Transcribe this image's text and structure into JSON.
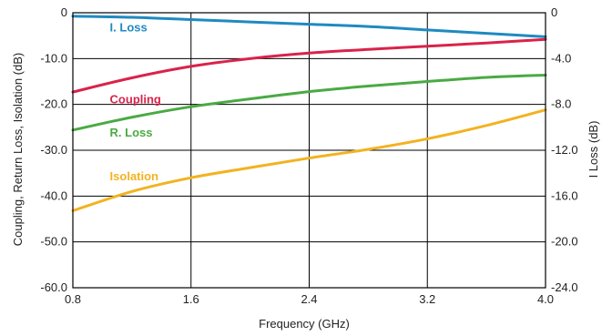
{
  "chart_data": {
    "type": "line",
    "xlabel": "Frequency (GHz)",
    "ylabel_left": "Coupling, Return Loss, Isolation (dB)",
    "ylabel_right": "I Loss (dB)",
    "xlim": [
      0.8,
      4.0
    ],
    "ylim_left": [
      -60,
      0
    ],
    "ylim_right": [
      -24,
      0
    ],
    "x_ticks": [
      0.8,
      1.6,
      2.4,
      3.2,
      4.0
    ],
    "x_tick_labels": [
      "0.8",
      "1.6",
      "2.4",
      "3.2",
      "4.0"
    ],
    "y_left_ticks": [
      0,
      -10,
      -20,
      -30,
      -40,
      -50,
      -60
    ],
    "y_left_tick_labels": [
      "0",
      "-10.0",
      "-20.0",
      "-30.0",
      "-40.0",
      "-50.0",
      "-60.0"
    ],
    "y_right_ticks": [
      0,
      -4,
      -8,
      -12,
      -16,
      -20,
      -24
    ],
    "y_right_tick_labels": [
      "0",
      "-4.0",
      "-8.0",
      "-12.0",
      "-16.0",
      "-20.0",
      "-24.0"
    ],
    "grid": true,
    "legend": "inline labels",
    "x": [
      0.8,
      1.2,
      1.6,
      2.0,
      2.4,
      2.8,
      3.2,
      3.6,
      4.0
    ],
    "series": [
      {
        "name": "I. Loss",
        "axis": "right",
        "color": "#1f8ac0",
        "values": [
          -0.3,
          -0.4,
          -0.6,
          -0.8,
          -1.0,
          -1.2,
          -1.5,
          -1.8,
          -2.1
        ]
      },
      {
        "name": "Coupling",
        "axis": "left",
        "color": "#d9234b",
        "values": [
          -17.3,
          -14.2,
          -11.7,
          -10.0,
          -8.8,
          -8.0,
          -7.3,
          -6.6,
          -5.8
        ]
      },
      {
        "name": "R. Loss",
        "axis": "left",
        "color": "#4aaa44",
        "values": [
          -25.6,
          -22.8,
          -20.5,
          -18.8,
          -17.2,
          -16.0,
          -15.0,
          -14.1,
          -13.6
        ]
      },
      {
        "name": "Isolation",
        "axis": "left",
        "color": "#f2b321",
        "values": [
          -43.2,
          -39.0,
          -36.0,
          -33.8,
          -31.7,
          -29.8,
          -27.5,
          -24.6,
          -21.2
        ]
      }
    ]
  }
}
